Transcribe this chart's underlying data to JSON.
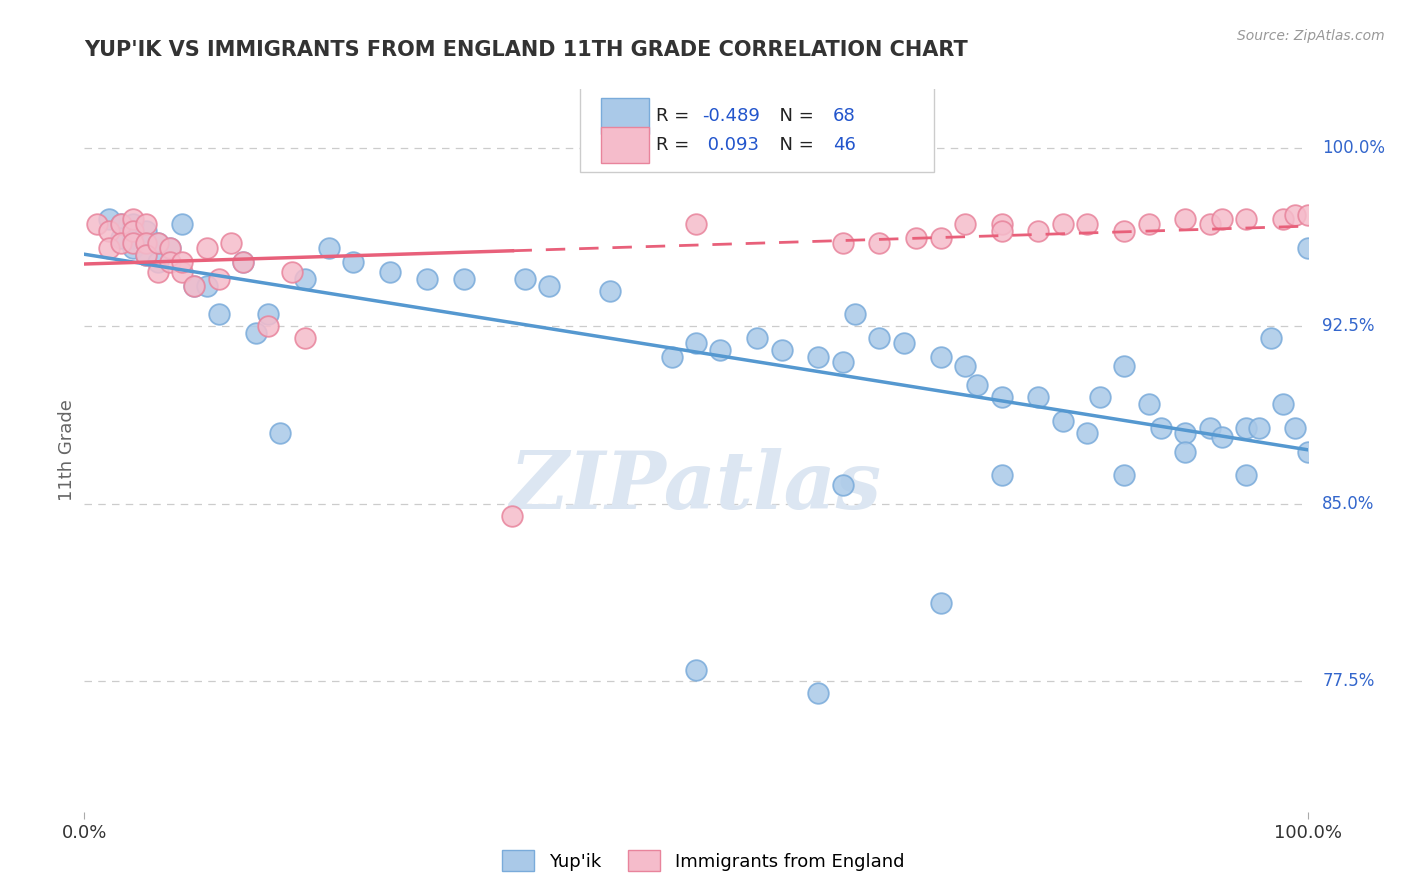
{
  "title": "YUP'IK VS IMMIGRANTS FROM ENGLAND 11TH GRADE CORRELATION CHART",
  "source_text": "Source: ZipAtlas.com",
  "ylabel": "11th Grade",
  "xlim": [
    0,
    1
  ],
  "ylim": [
    0.72,
    1.025
  ],
  "yticks": [
    0.775,
    0.85,
    0.925,
    1.0
  ],
  "ytick_labels": [
    "77.5%",
    "85.0%",
    "92.5%",
    "100.0%"
  ],
  "xtick_labels": [
    "0.0%",
    "100.0%"
  ],
  "xticks": [
    0,
    1
  ],
  "R_blue": -0.489,
  "N_blue": 68,
  "R_pink": 0.093,
  "N_pink": 46,
  "blue_color": "#aac9e8",
  "blue_edge_color": "#7aabda",
  "pink_color": "#f5bccb",
  "pink_edge_color": "#e8849c",
  "blue_line_color": "#5598d0",
  "pink_line_color": "#e8607a",
  "grid_color": "#cccccc",
  "background_color": "#ffffff",
  "title_color": "#333333",
  "axis_label_color": "#666666",
  "watermark_color": "#dce6f2",
  "legend_R_color": "#2255cc",
  "legend_N_color": "#2255cc",
  "blue_scatter_x": [
    0.02,
    0.03,
    0.03,
    0.04,
    0.04,
    0.04,
    0.05,
    0.05,
    0.05,
    0.06,
    0.06,
    0.07,
    0.08,
    0.09,
    0.1,
    0.11,
    0.13,
    0.14,
    0.15,
    0.18,
    0.2,
    0.22,
    0.28,
    0.31,
    0.38,
    0.43,
    0.5,
    0.52,
    0.55,
    0.57,
    0.6,
    0.62,
    0.63,
    0.65,
    0.67,
    0.7,
    0.72,
    0.73,
    0.75,
    0.78,
    0.8,
    0.82,
    0.83,
    0.85,
    0.87,
    0.88,
    0.9,
    0.9,
    0.92,
    0.93,
    0.95,
    0.96,
    0.97,
    0.98,
    0.99,
    1.0,
    1.0,
    0.48,
    0.36,
    0.25,
    0.16,
    0.6,
    0.7,
    0.75,
    0.85,
    0.95,
    0.62,
    0.5
  ],
  "blue_scatter_y": [
    0.97,
    0.968,
    0.962,
    0.968,
    0.962,
    0.958,
    0.965,
    0.96,
    0.955,
    0.96,
    0.952,
    0.958,
    0.968,
    0.942,
    0.942,
    0.93,
    0.952,
    0.922,
    0.93,
    0.945,
    0.958,
    0.952,
    0.945,
    0.945,
    0.942,
    0.94,
    0.918,
    0.915,
    0.92,
    0.915,
    0.912,
    0.91,
    0.93,
    0.92,
    0.918,
    0.912,
    0.908,
    0.9,
    0.895,
    0.895,
    0.885,
    0.88,
    0.895,
    0.908,
    0.892,
    0.882,
    0.88,
    0.872,
    0.882,
    0.878,
    0.882,
    0.882,
    0.92,
    0.892,
    0.882,
    0.872,
    0.958,
    0.912,
    0.945,
    0.948,
    0.88,
    0.77,
    0.808,
    0.862,
    0.862,
    0.862,
    0.858,
    0.78
  ],
  "pink_scatter_x": [
    0.01,
    0.02,
    0.02,
    0.03,
    0.03,
    0.04,
    0.04,
    0.04,
    0.05,
    0.05,
    0.05,
    0.06,
    0.06,
    0.07,
    0.07,
    0.08,
    0.08,
    0.09,
    0.1,
    0.11,
    0.12,
    0.13,
    0.15,
    0.17,
    0.18,
    0.35,
    0.65,
    0.68,
    0.72,
    0.75,
    0.78,
    0.8,
    0.82,
    0.85,
    0.87,
    0.9,
    0.92,
    0.93,
    0.95,
    0.98,
    0.99,
    1.0,
    0.5,
    0.62,
    0.7,
    0.75
  ],
  "pink_scatter_y": [
    0.968,
    0.965,
    0.958,
    0.968,
    0.96,
    0.97,
    0.965,
    0.96,
    0.968,
    0.96,
    0.955,
    0.96,
    0.948,
    0.958,
    0.952,
    0.948,
    0.952,
    0.942,
    0.958,
    0.945,
    0.96,
    0.952,
    0.925,
    0.948,
    0.92,
    0.845,
    0.96,
    0.962,
    0.968,
    0.968,
    0.965,
    0.968,
    0.968,
    0.965,
    0.968,
    0.97,
    0.968,
    0.97,
    0.97,
    0.97,
    0.972,
    0.972,
    0.968,
    0.96,
    0.962,
    0.965
  ]
}
